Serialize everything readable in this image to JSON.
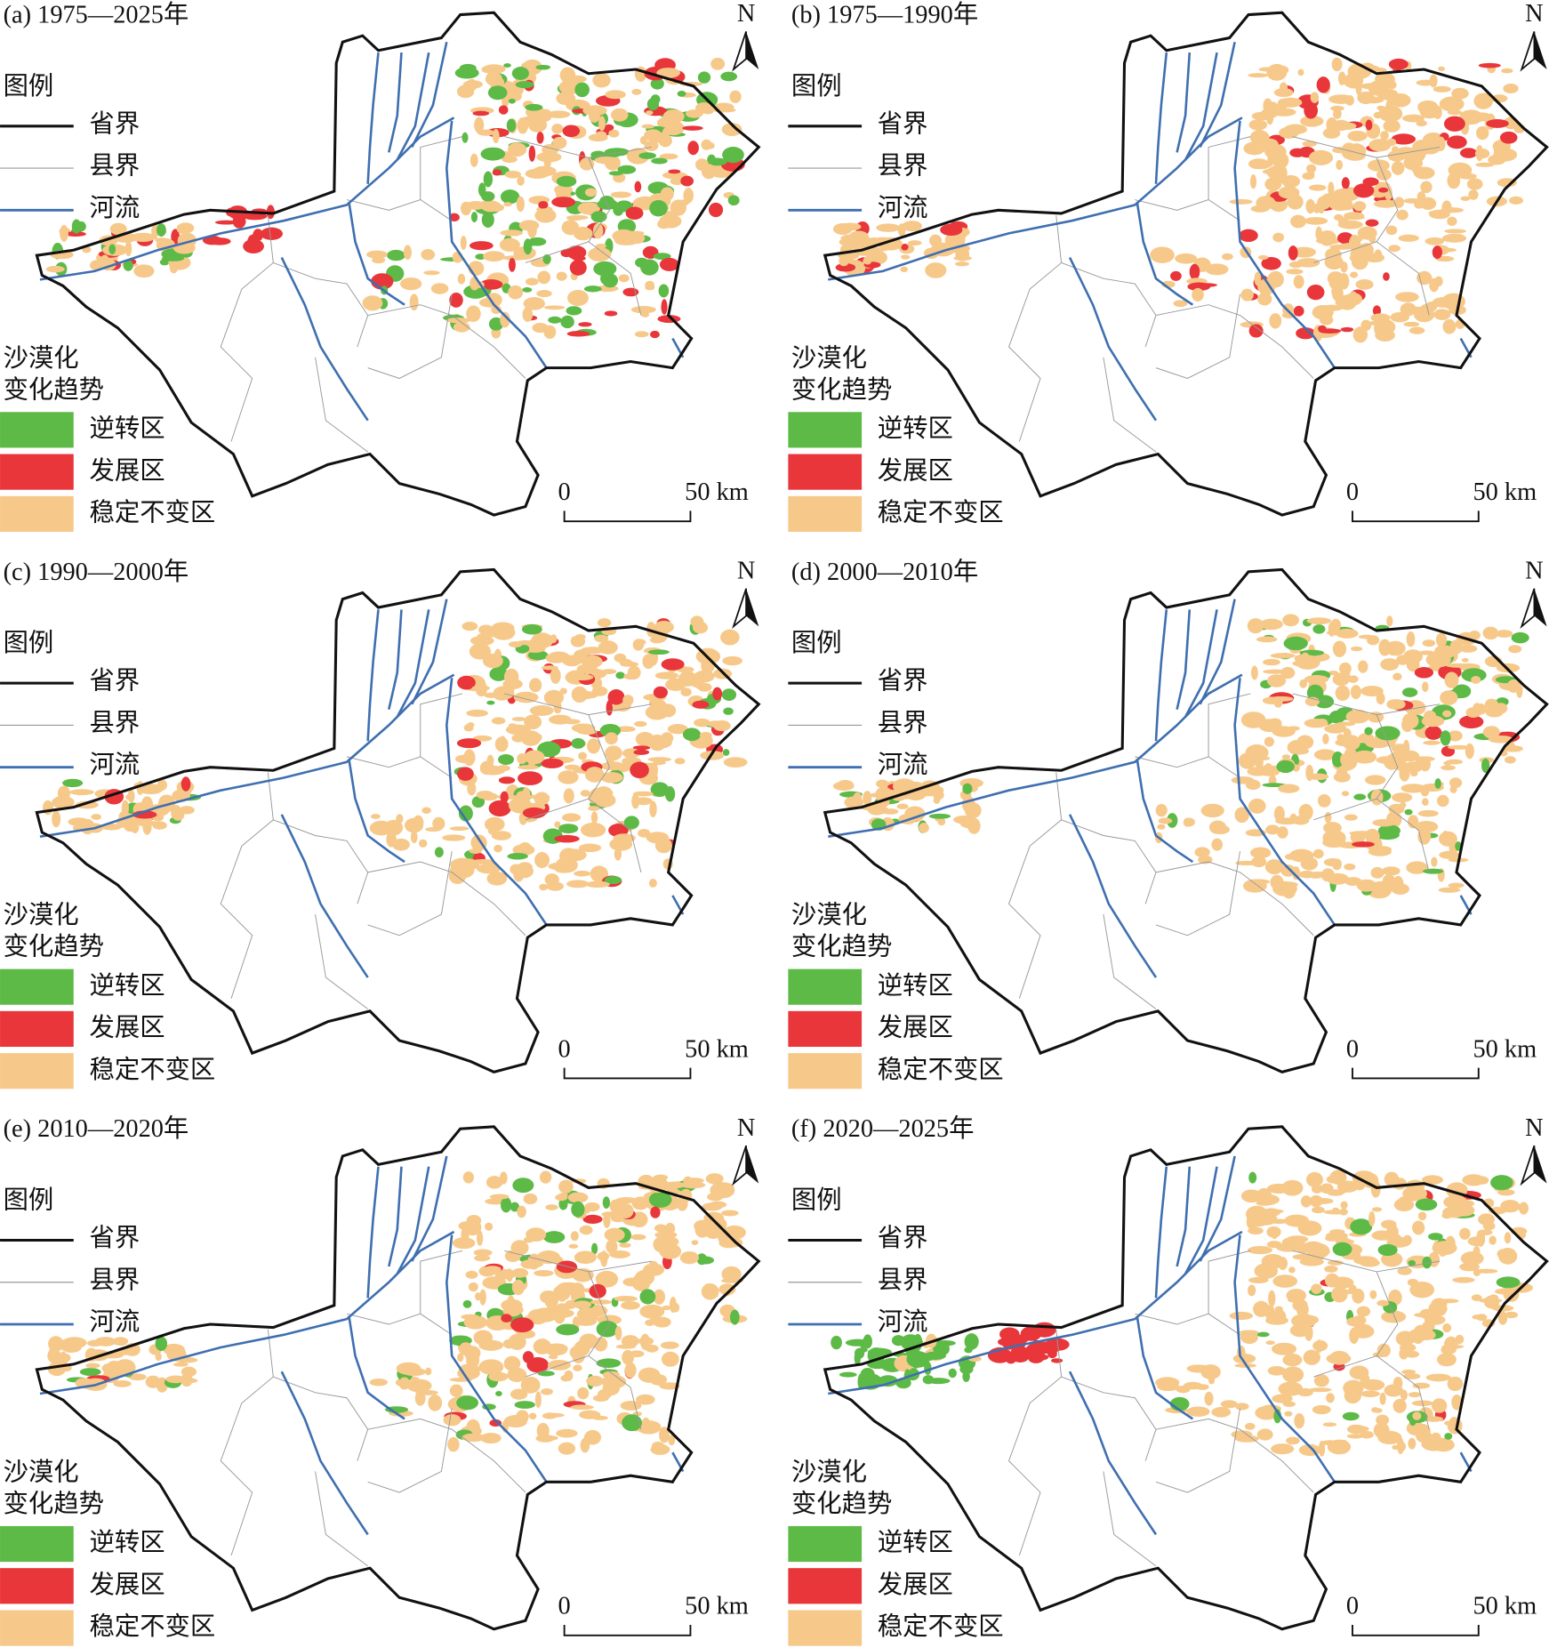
{
  "figure": {
    "class_colors": [
      "#5dba47",
      "#e8363a",
      "#f6c98b"
    ],
    "panels": [
      {
        "title": "(a) 1975—2025年",
        "north": "N",
        "legend": {
          "title": "图例",
          "lines": [
            "省界",
            "县界",
            "河流"
          ],
          "trend_title": [
            "沙漠化",
            "变化趋势"
          ],
          "classes": [
            "逆转区",
            "发展区",
            "稳定不变区"
          ]
        },
        "scale": [
          "0",
          "50 km"
        ]
      },
      {
        "title": "(b) 1975—1990年",
        "north": "N",
        "legend": {
          "title": "图例",
          "lines": [
            "省界",
            "县界",
            "河流"
          ],
          "trend_title": [
            "沙漠化",
            "变化趋势"
          ],
          "classes": [
            "逆转区",
            "发展区",
            "稳定不变区"
          ]
        },
        "scale": [
          "0",
          "50 km"
        ]
      },
      {
        "title": "(c) 1990—2000年",
        "north": "N",
        "legend": {
          "title": "图例",
          "lines": [
            "省界",
            "县界",
            "河流"
          ],
          "trend_title": [
            "沙漠化",
            "变化趋势"
          ],
          "classes": [
            "逆转区",
            "发展区",
            "稳定不变区"
          ]
        },
        "scale": [
          "0",
          "50 km"
        ]
      },
      {
        "title": "(d) 2000—2010年",
        "north": "N",
        "legend": {
          "title": "图例",
          "lines": [
            "省界",
            "县界",
            "河流"
          ],
          "trend_title": [
            "沙漠化",
            "变化趋势"
          ],
          "classes": [
            "逆转区",
            "发展区",
            "稳定不变区"
          ]
        },
        "scale": [
          "0",
          "50 km"
        ]
      },
      {
        "title": "(e) 2010—2020年",
        "north": "N",
        "legend": {
          "title": "图例",
          "lines": [
            "省界",
            "县界",
            "河流"
          ],
          "trend_title": [
            "沙漠化",
            "变化趋势"
          ],
          "classes": [
            "逆转区",
            "发展区",
            "稳定不变区"
          ]
        },
        "scale": [
          "0",
          "50 km"
        ]
      },
      {
        "title": "(f) 2020—2025年",
        "north": "N",
        "legend": {
          "title": "图例",
          "lines": [
            "省界",
            "县界",
            "河流"
          ],
          "trend_title": [
            "沙漠化",
            "变化趋势"
          ],
          "classes": [
            "逆转区",
            "发展区",
            "稳定不变区"
          ]
        },
        "scale": [
          "0",
          "50 km"
        ]
      }
    ]
  }
}
